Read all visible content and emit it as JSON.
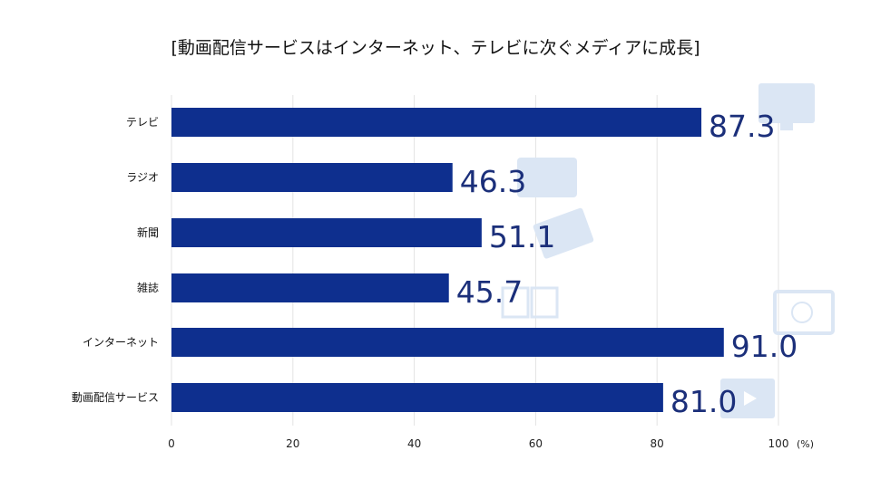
{
  "chart_data": {
    "type": "bar",
    "orientation": "horizontal",
    "title": "[動画配信サービスはインターネット、テレビに次ぐメディアに成長]",
    "categories": [
      "テレビ",
      "ラジオ",
      "新聞",
      "雑誌",
      "インターネット",
      "動画配信サービス"
    ],
    "values": [
      87.3,
      46.3,
      51.1,
      45.7,
      91.0,
      81.0
    ],
    "value_labels": [
      "87.3",
      "46.3",
      "51.1",
      "45.7",
      "91.0",
      "81.0"
    ],
    "xlabel": "(%)",
    "xlim": [
      0,
      100
    ],
    "xticks": [
      0,
      20,
      40,
      60,
      80,
      100
    ],
    "grid": true,
    "legend": "none",
    "colors": {
      "bar": "#0e2f8e",
      "label": "#1b2f7a",
      "grid": "#e3e3e3",
      "icon": "#dbe6f4"
    },
    "icons": [
      "tv-icon",
      "radio-icon",
      "newspaper-icon",
      "book-icon",
      "computer-globe-icon",
      "video-play-icon"
    ]
  }
}
